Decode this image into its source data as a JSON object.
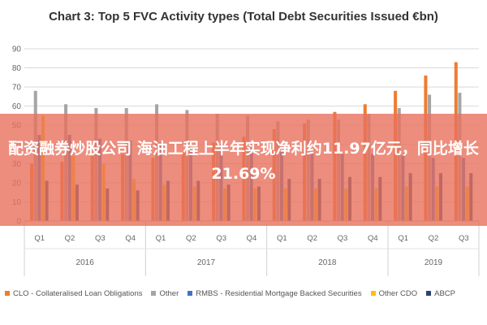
{
  "chart_data": {
    "type": "bar",
    "title": "Chart 3: Top 5 FVC Activity types (Total Debt Securities Issued €bn)",
    "ylim": [
      0,
      90
    ],
    "yticks": [
      0,
      10,
      20,
      30,
      40,
      50,
      60,
      70,
      80,
      90
    ],
    "grid": true,
    "legend_position": "bottom",
    "categories": [
      "Q1",
      "Q2",
      "Q3",
      "Q4",
      "Q1",
      "Q2",
      "Q3",
      "Q4",
      "Q1",
      "Q2",
      "Q3",
      "Q4",
      "Q1",
      "Q2",
      "Q3"
    ],
    "groups": [
      {
        "label": "2016",
        "count": 4
      },
      {
        "label": "2017",
        "count": 4
      },
      {
        "label": "2018",
        "count": 4
      },
      {
        "label": "2019",
        "count": 3
      }
    ],
    "series": [
      {
        "name": "CLO - Collateralised Loan Obligations",
        "color": "#ED7D31",
        "values": [
          30,
          31,
          34,
          35,
          33,
          36,
          41,
          44,
          48,
          51,
          57,
          61,
          68,
          76,
          83
        ]
      },
      {
        "name": "Other",
        "color": "#A5A5A5",
        "values": [
          68,
          61,
          59,
          59,
          61,
          58,
          56,
          55,
          52,
          53,
          53,
          56,
          59,
          66,
          67
        ]
      },
      {
        "name": "RMBS - Residential Mortgage Backed Securities",
        "color": "#4472C4",
        "values": [
          45,
          45,
          43,
          42,
          41,
          40,
          40,
          39,
          37,
          36,
          35,
          35,
          34,
          33,
          33
        ]
      },
      {
        "name": "Other CDO",
        "color": "#FFC000",
        "values": [
          55,
          34,
          30,
          22,
          19,
          18,
          17,
          17,
          17,
          17,
          17,
          17,
          18,
          18,
          18
        ]
      },
      {
        "name": "ABCP",
        "color": "#264478",
        "values": [
          21,
          19,
          17,
          16,
          21,
          21,
          19,
          18,
          22,
          22,
          23,
          23,
          25,
          25,
          25
        ]
      }
    ]
  },
  "overlay": {
    "headline": "配资融券炒股公司 海油工程上半年实现净利约11.97亿元，同比增长21.69%"
  }
}
